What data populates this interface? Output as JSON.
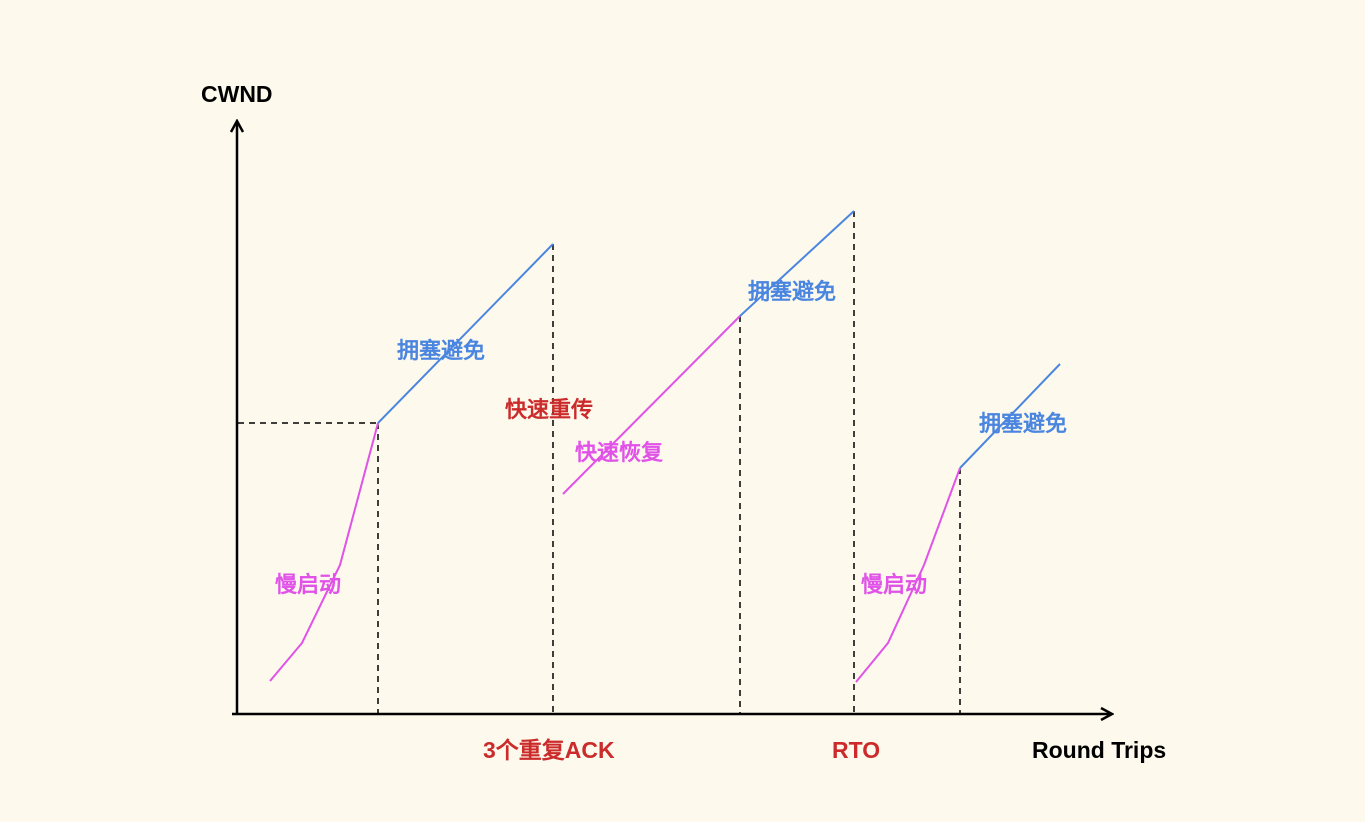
{
  "axes": {
    "y_label": "CWND",
    "x_label": "Round Trips"
  },
  "labels": {
    "slow_start_1": "慢启动",
    "congestion_avoidance_1": "拥塞避免",
    "fast_retransmit": "快速重传",
    "fast_recovery": "快速恢复",
    "congestion_avoidance_2": "拥塞避免",
    "slow_start_2": "慢启动",
    "congestion_avoidance_3": "拥塞避免",
    "dup_ack_event": "3个重复ACK",
    "rto_event": "RTO"
  },
  "colors": {
    "background": "#fdf9ec",
    "axis": "#000000",
    "slow_start": "#e052e8",
    "congestion_avoidance": "#4a86e0",
    "event": "#cc2b2b"
  }
}
